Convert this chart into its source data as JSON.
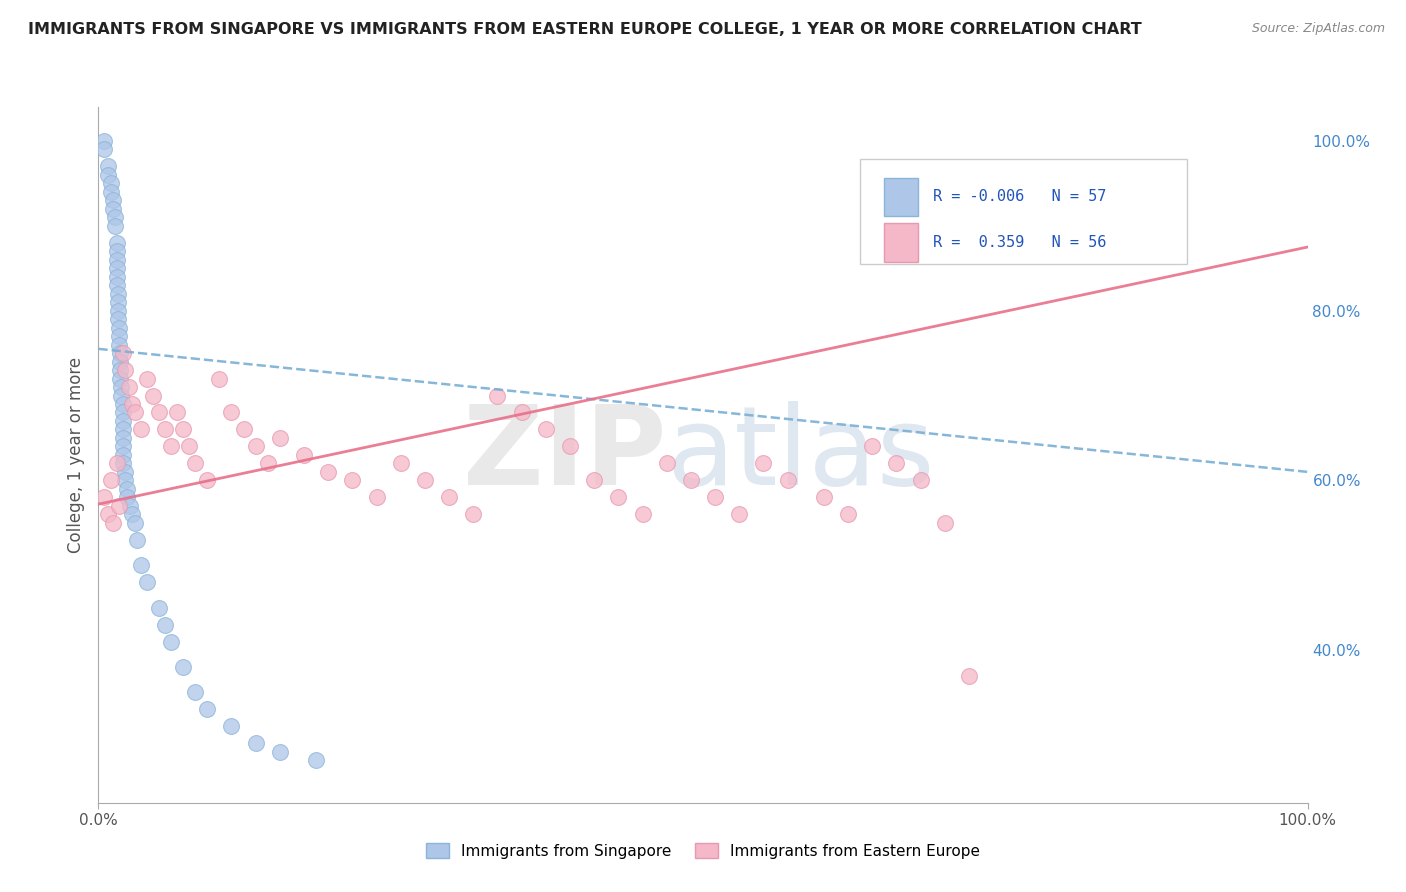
{
  "title": "IMMIGRANTS FROM SINGAPORE VS IMMIGRANTS FROM EASTERN EUROPE COLLEGE, 1 YEAR OR MORE CORRELATION CHART",
  "source": "Source: ZipAtlas.com",
  "ylabel": "College, 1 year or more",
  "xlim": [
    0.0,
    1.0
  ],
  "ylim": [
    0.22,
    1.04
  ],
  "x_tick_positions": [
    0.0,
    1.0
  ],
  "x_tick_labels": [
    "0.0%",
    "100.0%"
  ],
  "y_ticks_right": [
    1.0,
    0.8,
    0.6,
    0.4
  ],
  "y_tick_labels_right": [
    "100.0%",
    "80.0%",
    "60.0%",
    "40.0%"
  ],
  "legend_R1": "-0.006",
  "legend_N1": "57",
  "legend_R2": "0.359",
  "legend_N2": "56",
  "color_blue": "#aec6e8",
  "color_pink": "#f4b8c8",
  "line_blue_color": "#7aafd4",
  "line_pink_color": "#e8708a",
  "background_color": "#ffffff",
  "grid_color": "#dddddd",
  "blue_line_start_y": 0.755,
  "blue_line_end_y": 0.61,
  "pink_line_start_y": 0.572,
  "pink_line_end_y": 0.875,
  "blue_scatter_x": [
    0.005,
    0.005,
    0.008,
    0.008,
    0.01,
    0.01,
    0.012,
    0.012,
    0.014,
    0.014,
    0.015,
    0.015,
    0.015,
    0.015,
    0.015,
    0.015,
    0.016,
    0.016,
    0.016,
    0.016,
    0.017,
    0.017,
    0.017,
    0.018,
    0.018,
    0.018,
    0.018,
    0.019,
    0.019,
    0.02,
    0.02,
    0.02,
    0.02,
    0.02,
    0.02,
    0.02,
    0.02,
    0.022,
    0.022,
    0.024,
    0.024,
    0.026,
    0.028,
    0.03,
    0.032,
    0.035,
    0.04,
    0.05,
    0.055,
    0.06,
    0.07,
    0.08,
    0.09,
    0.11,
    0.13,
    0.15,
    0.18
  ],
  "blue_scatter_y": [
    1.0,
    0.99,
    0.97,
    0.96,
    0.95,
    0.94,
    0.93,
    0.92,
    0.91,
    0.9,
    0.88,
    0.87,
    0.86,
    0.85,
    0.84,
    0.83,
    0.82,
    0.81,
    0.8,
    0.79,
    0.78,
    0.77,
    0.76,
    0.75,
    0.74,
    0.73,
    0.72,
    0.71,
    0.7,
    0.69,
    0.68,
    0.67,
    0.66,
    0.65,
    0.64,
    0.63,
    0.62,
    0.61,
    0.6,
    0.59,
    0.58,
    0.57,
    0.56,
    0.55,
    0.53,
    0.5,
    0.48,
    0.45,
    0.43,
    0.41,
    0.38,
    0.35,
    0.33,
    0.31,
    0.29,
    0.28,
    0.27
  ],
  "pink_scatter_x": [
    0.005,
    0.008,
    0.01,
    0.012,
    0.015,
    0.017,
    0.02,
    0.022,
    0.025,
    0.028,
    0.03,
    0.035,
    0.04,
    0.045,
    0.05,
    0.055,
    0.06,
    0.065,
    0.07,
    0.075,
    0.08,
    0.09,
    0.1,
    0.11,
    0.12,
    0.13,
    0.14,
    0.15,
    0.17,
    0.19,
    0.21,
    0.23,
    0.25,
    0.27,
    0.29,
    0.31,
    0.33,
    0.35,
    0.37,
    0.39,
    0.41,
    0.43,
    0.45,
    0.47,
    0.49,
    0.51,
    0.53,
    0.55,
    0.57,
    0.6,
    0.62,
    0.64,
    0.66,
    0.68,
    0.7,
    0.72
  ],
  "pink_scatter_y": [
    0.58,
    0.56,
    0.6,
    0.55,
    0.62,
    0.57,
    0.75,
    0.73,
    0.71,
    0.69,
    0.68,
    0.66,
    0.72,
    0.7,
    0.68,
    0.66,
    0.64,
    0.68,
    0.66,
    0.64,
    0.62,
    0.6,
    0.72,
    0.68,
    0.66,
    0.64,
    0.62,
    0.65,
    0.63,
    0.61,
    0.6,
    0.58,
    0.62,
    0.6,
    0.58,
    0.56,
    0.7,
    0.68,
    0.66,
    0.64,
    0.6,
    0.58,
    0.56,
    0.62,
    0.6,
    0.58,
    0.56,
    0.62,
    0.6,
    0.58,
    0.56,
    0.64,
    0.62,
    0.6,
    0.55,
    0.37
  ]
}
